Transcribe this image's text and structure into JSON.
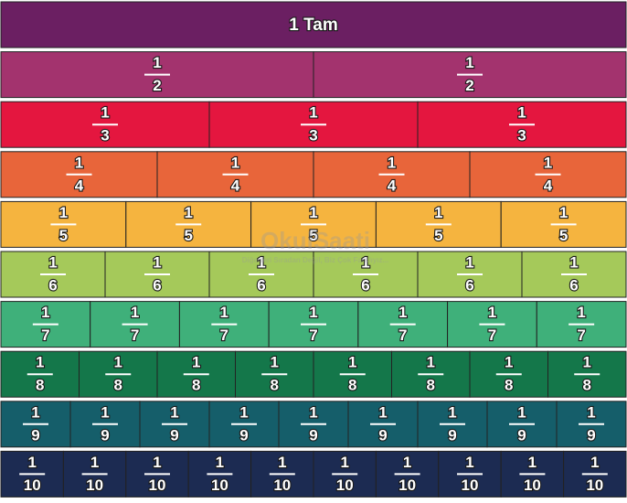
{
  "title": "1 Tam",
  "title_color": "#6b1f62",
  "rows": [
    {
      "color": "#a3336e",
      "cells": [
        [
          1,
          2
        ],
        [
          1,
          2
        ]
      ]
    },
    {
      "color": "#e4163f",
      "cells": [
        [
          1,
          3
        ],
        [
          1,
          3
        ],
        [
          1,
          3
        ]
      ]
    },
    {
      "color": "#e8653a",
      "cells": [
        [
          1,
          4
        ],
        [
          1,
          4
        ],
        [
          1,
          4
        ],
        [
          1,
          4
        ]
      ]
    },
    {
      "color": "#f5b43f",
      "cells": [
        [
          1,
          5
        ],
        [
          1,
          5
        ],
        [
          1,
          5
        ],
        [
          1,
          5
        ],
        [
          1,
          5
        ]
      ]
    },
    {
      "color": "#a5c95a",
      "cells": [
        [
          1,
          6
        ],
        [
          1,
          6
        ],
        [
          1,
          6
        ],
        [
          1,
          6
        ],
        [
          1,
          6
        ],
        [
          1,
          6
        ]
      ]
    },
    {
      "color": "#3fb07a",
      "cells": [
        [
          1,
          7
        ],
        [
          1,
          7
        ],
        [
          1,
          7
        ],
        [
          1,
          7
        ],
        [
          1,
          7
        ],
        [
          1,
          7
        ],
        [
          1,
          7
        ]
      ]
    },
    {
      "color": "#14774a",
      "cells": [
        [
          1,
          8
        ],
        [
          1,
          8
        ],
        [
          1,
          8
        ],
        [
          1,
          8
        ],
        [
          1,
          8
        ],
        [
          1,
          8
        ],
        [
          1,
          8
        ],
        [
          1,
          8
        ]
      ]
    },
    {
      "color": "#155e6a",
      "cells": [
        [
          1,
          9
        ],
        [
          1,
          9
        ],
        [
          1,
          9
        ],
        [
          1,
          9
        ],
        [
          1,
          9
        ],
        [
          1,
          9
        ],
        [
          1,
          9
        ],
        [
          1,
          9
        ],
        [
          1,
          9
        ]
      ]
    },
    {
      "color": "#1c2b52",
      "cells": [
        [
          1,
          10
        ],
        [
          1,
          10
        ],
        [
          1,
          10
        ],
        [
          1,
          10
        ],
        [
          1,
          10
        ],
        [
          1,
          10
        ],
        [
          1,
          10
        ],
        [
          1,
          10
        ],
        [
          1,
          10
        ],
        [
          1,
          10
        ]
      ]
    }
  ],
  "watermark": {
    "brand": "OkulSaati",
    "slogan": "Diğerleri Sıradan Değil, Biz Çok Farklıyız..."
  }
}
